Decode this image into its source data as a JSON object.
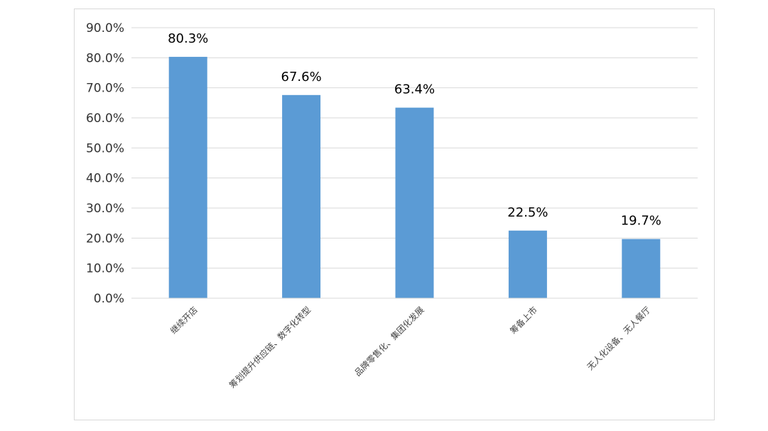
{
  "chart_data": {
    "type": "bar",
    "categories": [
      "继续开店",
      "筹划提升供应链、数字化转型",
      "品牌零售化、集团化发展",
      "筹备上市",
      "无人化设备、无人餐厅"
    ],
    "values": [
      80.3,
      67.6,
      63.4,
      22.5,
      19.7
    ],
    "data_labels": [
      "80.3%",
      "67.6%",
      "63.4%",
      "22.5%",
      "19.7%"
    ],
    "y_ticks": [
      "0.0%",
      "10.0%",
      "20.0%",
      "30.0%",
      "40.0%",
      "50.0%",
      "60.0%",
      "70.0%",
      "80.0%",
      "90.0%"
    ],
    "ylim": [
      0,
      90
    ],
    "grid": true,
    "bar_color": "#5b9bd5",
    "grid_color": "#d9d9d9"
  }
}
